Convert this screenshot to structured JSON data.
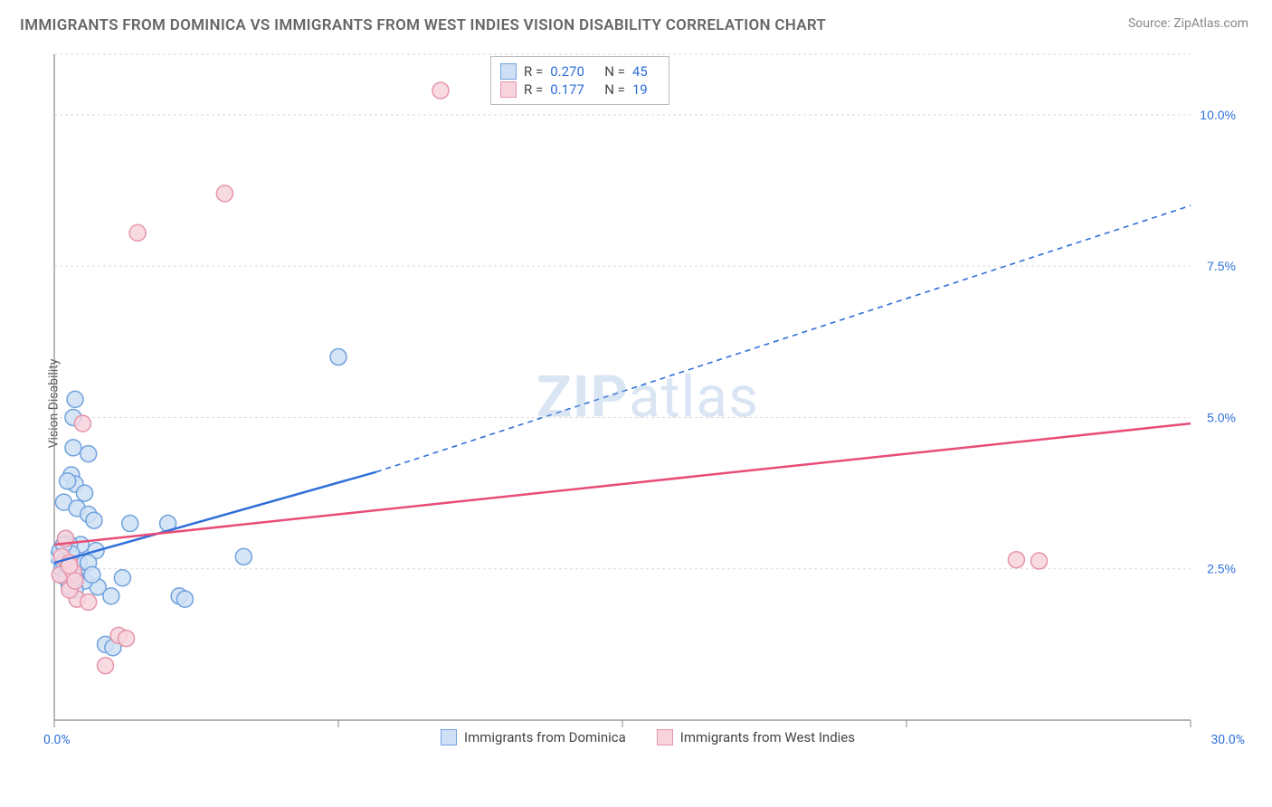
{
  "title": "IMMIGRANTS FROM DOMINICA VS IMMIGRANTS FROM WEST INDIES VISION DISABILITY CORRELATION CHART",
  "source": "Source: ZipAtlas.com",
  "y_axis_label": "Vision Disability",
  "watermark": "ZIPatlas",
  "chart": {
    "type": "scatter",
    "xlim": [
      0,
      30
    ],
    "ylim": [
      0,
      11
    ],
    "x_ticks": [
      0,
      7.5,
      15,
      22.5,
      30
    ],
    "x_tick_labels": [
      "0.0%",
      "",
      "",
      "",
      "30.0%"
    ],
    "y_ticks": [
      2.5,
      5.0,
      7.5,
      10.0
    ],
    "y_tick_labels": [
      "2.5%",
      "5.0%",
      "7.5%",
      "10.0%"
    ],
    "background_color": "#ffffff",
    "grid_color": "#d9d9d9",
    "grid_dash": "3,3",
    "axis_color": "#888888",
    "y_tick_label_color": "#2f6fd9",
    "x_tick_label_color": "#2f6fd9",
    "marker_radius": 9,
    "marker_stroke_width": 1.5,
    "regression_line_width": 2.5,
    "series": [
      {
        "name": "Immigrants from Dominica",
        "fill_color": "#cfe0f5",
        "stroke_color": "#6fa2de",
        "line_color": "#2f6fd9",
        "r_value": "0.270",
        "n_value": "45",
        "regression": {
          "x1": 0,
          "y1": 2.6,
          "x2_solid": 8.5,
          "y2_solid": 4.1,
          "x2_dash": 30,
          "y2_dash": 8.5
        },
        "points": [
          [
            0.1,
            2.7
          ],
          [
            0.2,
            2.5
          ],
          [
            0.15,
            2.8
          ],
          [
            0.3,
            3.0
          ],
          [
            0.25,
            2.6
          ],
          [
            0.4,
            2.55
          ],
          [
            0.6,
            2.55
          ],
          [
            0.5,
            5.0
          ],
          [
            0.55,
            5.3
          ],
          [
            0.5,
            4.5
          ],
          [
            0.9,
            4.4
          ],
          [
            0.45,
            4.05
          ],
          [
            0.55,
            3.9
          ],
          [
            0.35,
            3.95
          ],
          [
            0.25,
            3.6
          ],
          [
            0.8,
            3.75
          ],
          [
            0.6,
            3.5
          ],
          [
            0.9,
            3.4
          ],
          [
            1.05,
            3.3
          ],
          [
            2.0,
            3.25
          ],
          [
            3.0,
            3.25
          ],
          [
            1.15,
            2.2
          ],
          [
            0.8,
            2.3
          ],
          [
            0.55,
            2.15
          ],
          [
            1.5,
            2.05
          ],
          [
            1.8,
            2.35
          ],
          [
            3.3,
            2.05
          ],
          [
            3.45,
            2.0
          ],
          [
            1.35,
            1.25
          ],
          [
            1.55,
            1.2
          ],
          [
            0.6,
            2.45
          ],
          [
            0.3,
            2.35
          ],
          [
            0.4,
            2.2
          ],
          [
            0.65,
            2.6
          ],
          [
            5.0,
            2.7
          ],
          [
            7.5,
            6.0
          ],
          [
            1.1,
            2.8
          ],
          [
            0.7,
            2.9
          ],
          [
            0.4,
            2.9
          ],
          [
            0.55,
            2.35
          ],
          [
            0.45,
            2.75
          ],
          [
            0.35,
            2.55
          ],
          [
            0.9,
            2.6
          ],
          [
            1.0,
            2.4
          ],
          [
            0.25,
            2.9
          ]
        ]
      },
      {
        "name": "Immigrants from West Indies",
        "fill_color": "#f7d4dd",
        "stroke_color": "#e695aa",
        "line_color": "#e84c77",
        "r_value": "0.177",
        "n_value": "19",
        "regression": {
          "x1": 0,
          "y1": 2.9,
          "x2_solid": 30,
          "y2_solid": 4.9,
          "x2_dash": 30,
          "y2_dash": 4.9
        },
        "points": [
          [
            10.2,
            10.4
          ],
          [
            4.5,
            8.7
          ],
          [
            2.2,
            8.05
          ],
          [
            0.75,
            4.9
          ],
          [
            0.3,
            3.0
          ],
          [
            0.2,
            2.7
          ],
          [
            0.15,
            2.4
          ],
          [
            0.4,
            2.6
          ],
          [
            0.5,
            2.45
          ],
          [
            0.6,
            2.0
          ],
          [
            0.9,
            1.95
          ],
          [
            0.4,
            2.15
          ],
          [
            1.7,
            1.4
          ],
          [
            1.35,
            0.9
          ],
          [
            1.9,
            1.35
          ],
          [
            0.4,
            2.55
          ],
          [
            25.4,
            2.65
          ],
          [
            26.0,
            2.63
          ],
          [
            0.55,
            2.3
          ]
        ]
      }
    ]
  },
  "stats_legend": {
    "rows": [
      {
        "r_label": "R =",
        "r": "0.270",
        "n_label": "N =",
        "n": "45"
      },
      {
        "r_label": "R =",
        "r": "0.177",
        "n_label": "N =",
        "n": "19"
      }
    ]
  },
  "bottom_legend": {
    "items": [
      {
        "label": "Immigrants from Dominica"
      },
      {
        "label": "Immigrants from West Indies"
      }
    ]
  }
}
